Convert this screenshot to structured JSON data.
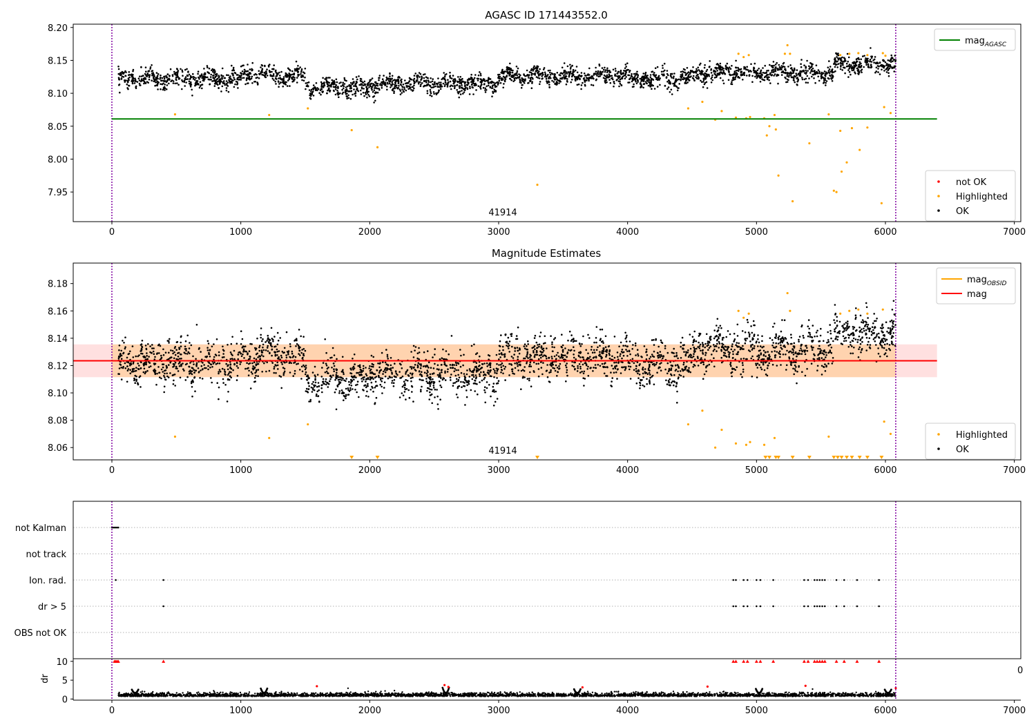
{
  "chart_data": [
    {
      "type": "scatter",
      "title": "AGASC ID 171443552.0",
      "xlim": [
        -300,
        7050
      ],
      "ylim": [
        7.905,
        8.205
      ],
      "xticks": [
        0,
        1000,
        2000,
        3000,
        4000,
        5000,
        6000,
        7000
      ],
      "xtick_labels": [
        "0",
        "1000",
        "2000",
        "3000",
        "4000",
        "5000",
        "6000",
        "7000"
      ],
      "yticks": [
        7.95,
        8.0,
        8.05,
        8.1,
        8.15,
        8.2
      ],
      "ytick_labels": [
        "7.95",
        "8.00",
        "8.05",
        "8.10",
        "8.15",
        "8.20"
      ],
      "obs_boundaries": [
        0,
        6080
      ],
      "obsid_label": "41914",
      "obsid_label_x": 3040,
      "mag_agasc": 8.061,
      "mag_agasc_x": [
        0,
        6400
      ],
      "ok_bands": [
        {
          "x": [
            50,
            1000
          ],
          "y": 8.122
        },
        {
          "x": [
            1000,
            1500
          ],
          "y": 8.127
        },
        {
          "x": [
            1500,
            2000
          ],
          "y": 8.109
        },
        {
          "x": [
            2000,
            3000
          ],
          "y": 8.114
        },
        {
          "x": [
            3000,
            4000
          ],
          "y": 8.126
        },
        {
          "x": [
            4000,
            4500
          ],
          "y": 8.121
        },
        {
          "x": [
            4500,
            5000
          ],
          "y": 8.132
        },
        {
          "x": [
            5000,
            5600
          ],
          "y": 8.131
        },
        {
          "x": [
            5600,
            6080
          ],
          "y": 8.144
        }
      ],
      "highlighted_points": [
        [
          490,
          8.068
        ],
        [
          1220,
          8.067
        ],
        [
          1520,
          8.077
        ],
        [
          1860,
          8.044
        ],
        [
          2060,
          8.018
        ],
        [
          3300,
          7.961
        ],
        [
          4470,
          8.077
        ],
        [
          4580,
          8.087
        ],
        [
          4680,
          8.06
        ],
        [
          4730,
          8.073
        ],
        [
          4840,
          8.063
        ],
        [
          4920,
          8.062
        ],
        [
          4950,
          8.064
        ],
        [
          5060,
          8.062
        ],
        [
          5080,
          8.036
        ],
        [
          5100,
          8.05
        ],
        [
          5140,
          8.067
        ],
        [
          5150,
          8.045
        ],
        [
          5170,
          7.975
        ],
        [
          5280,
          7.936
        ],
        [
          5410,
          8.024
        ],
        [
          5560,
          8.068
        ],
        [
          5600,
          7.952
        ],
        [
          5620,
          7.95
        ],
        [
          5650,
          8.043
        ],
        [
          5660,
          7.981
        ],
        [
          5700,
          7.995
        ],
        [
          5740,
          8.047
        ],
        [
          5800,
          8.014
        ],
        [
          5860,
          8.048
        ],
        [
          5970,
          7.933
        ],
        [
          5990,
          8.079
        ],
        [
          6040,
          8.07
        ],
        [
          4860,
          8.16
        ],
        [
          4900,
          8.155
        ],
        [
          4940,
          8.158
        ],
        [
          5220,
          8.16
        ],
        [
          5240,
          8.173
        ],
        [
          5260,
          8.16
        ],
        [
          5650,
          8.158
        ],
        [
          5720,
          8.16
        ],
        [
          5790,
          8.161
        ],
        [
          5860,
          8.158
        ],
        [
          5980,
          8.161
        ],
        [
          6000,
          8.157
        ]
      ],
      "legend_top": [
        {
          "label": "mag",
          "subscript": "AGASC",
          "color": "#008000"
        }
      ],
      "legend_bottom": [
        {
          "label": "not OK",
          "color": "#ff0000"
        },
        {
          "label": "Highlighted",
          "color": "#ffa500"
        },
        {
          "label": "OK",
          "color": "#000000"
        }
      ]
    },
    {
      "type": "scatter",
      "title": "Magnitude Estimates",
      "xlim": [
        -300,
        7050
      ],
      "ylim": [
        8.051,
        8.195
      ],
      "xticks": [
        0,
        1000,
        2000,
        3000,
        4000,
        5000,
        6000,
        7000
      ],
      "xtick_labels": [
        "0",
        "1000",
        "2000",
        "3000",
        "4000",
        "5000",
        "6000",
        "7000"
      ],
      "yticks": [
        8.06,
        8.08,
        8.1,
        8.12,
        8.14,
        8.16,
        8.18
      ],
      "ytick_labels": [
        "8.06",
        "8.08",
        "8.10",
        "8.12",
        "8.14",
        "8.16",
        "8.18"
      ],
      "obs_boundaries": [
        0,
        6080
      ],
      "obsid_label": "41914",
      "obsid_label_x": 3040,
      "mag": 8.1235,
      "mag_band": [
        8.1115,
        8.1355
      ],
      "mag_obsid": 8.1235,
      "mag_x": [
        -300,
        6400
      ],
      "obsid_x": [
        0,
        6080
      ],
      "ok_bands": [
        {
          "x": [
            50,
            1000
          ],
          "y": 8.122
        },
        {
          "x": [
            1000,
            1500
          ],
          "y": 8.127
        },
        {
          "x": [
            1500,
            2000
          ],
          "y": 8.109
        },
        {
          "x": [
            2000,
            3000
          ],
          "y": 8.114
        },
        {
          "x": [
            3000,
            4000
          ],
          "y": 8.126
        },
        {
          "x": [
            4000,
            4500
          ],
          "y": 8.121
        },
        {
          "x": [
            4500,
            5000
          ],
          "y": 8.132
        },
        {
          "x": [
            5000,
            5600
          ],
          "y": 8.131
        },
        {
          "x": [
            5600,
            6080
          ],
          "y": 8.144
        }
      ],
      "highlighted_points": [
        [
          490,
          8.068
        ],
        [
          1220,
          8.067
        ],
        [
          1520,
          8.077
        ],
        [
          4470,
          8.077
        ],
        [
          4580,
          8.087
        ],
        [
          4680,
          8.06
        ],
        [
          4730,
          8.073
        ],
        [
          4840,
          8.063
        ],
        [
          4920,
          8.062
        ],
        [
          4950,
          8.064
        ],
        [
          5060,
          8.062
        ],
        [
          5140,
          8.067
        ],
        [
          5560,
          8.068
        ],
        [
          5990,
          8.079
        ],
        [
          6040,
          8.07
        ],
        [
          4860,
          8.16
        ],
        [
          4900,
          8.155
        ],
        [
          4940,
          8.158
        ],
        [
          5240,
          8.173
        ],
        [
          5260,
          8.16
        ],
        [
          5650,
          8.158
        ],
        [
          5720,
          8.16
        ],
        [
          5790,
          8.161
        ],
        [
          5860,
          8.158
        ],
        [
          5980,
          8.161
        ]
      ],
      "clipped_markers_x": [
        1860,
        2060,
        3300,
        5070,
        5100,
        5150,
        5170,
        5280,
        5410,
        5600,
        5630,
        5660,
        5700,
        5740,
        5800,
        5860,
        5970
      ],
      "legend_top": [
        {
          "label": "mag",
          "subscript": "OBSID",
          "color": "#ffa500"
        },
        {
          "label": "mag",
          "subscript": "",
          "color": "#ff0000"
        }
      ],
      "legend_bottom": [
        {
          "label": "Highlighted",
          "color": "#ffa500"
        },
        {
          "label": "OK",
          "color": "#000000"
        }
      ]
    },
    {
      "type": "scatter",
      "title": "",
      "xlim": [
        -300,
        7050
      ],
      "categories": [
        "not Kalman",
        "not track",
        "Ion. rad.",
        "dr > 5",
        "OBS not OK"
      ],
      "flags": {
        "not Kalman": [
          0,
          10,
          20,
          30,
          40,
          50
        ],
        "not track": [],
        "Ion. rad.": [
          30,
          400,
          4820,
          4840,
          4900,
          4930,
          5000,
          5030,
          5130,
          5370,
          5400,
          5450,
          5470,
          5490,
          5510,
          5530,
          5620,
          5680,
          5780,
          5950
        ],
        "dr > 5": [
          400,
          4820,
          4840,
          4900,
          4930,
          5000,
          5030,
          5130,
          5370,
          5400,
          5450,
          5470,
          5490,
          5510,
          5530,
          5620,
          5680,
          5780,
          5950
        ],
        "OBS not OK": []
      },
      "obs_boundaries": [
        0,
        6080
      ]
    },
    {
      "type": "scatter",
      "title": "",
      "xlim": [
        -300,
        7050
      ],
      "ylim": [
        -0.3,
        10.7
      ],
      "ylabel": "dr",
      "xticks": [
        0,
        1000,
        2000,
        3000,
        4000,
        5000,
        6000,
        7000
      ],
      "xtick_labels": [
        "0",
        "1000",
        "2000",
        "3000",
        "4000",
        "5000",
        "6000",
        "7000"
      ],
      "yticks": [
        0,
        5,
        10
      ],
      "ytick_labels": [
        "0",
        "5",
        "10"
      ],
      "ok_mean": 0.9,
      "ok_x": [
        50,
        6080
      ],
      "arcs": [
        [
          180,
          2.5
        ],
        [
          1180,
          2.8
        ],
        [
          2590,
          3.0
        ],
        [
          3610,
          2.6
        ],
        [
          5020,
          2.7
        ],
        [
          6020,
          2.5
        ]
      ],
      "red_points": [
        [
          1590,
          3.4
        ],
        [
          2580,
          3.7
        ],
        [
          2610,
          3.2
        ],
        [
          4620,
          3.3
        ],
        [
          3650,
          3.1
        ],
        [
          5380,
          3.5
        ],
        [
          6080,
          2.9
        ]
      ],
      "red_capped_x": [
        20,
        30,
        40,
        50,
        400,
        4820,
        4840,
        4900,
        4930,
        5000,
        5030,
        5130,
        5370,
        5400,
        5450,
        5470,
        5490,
        5510,
        5530,
        5620,
        5680,
        5780,
        5950
      ],
      "obs_boundaries": [
        0,
        6080
      ],
      "edge_label": "0"
    }
  ]
}
